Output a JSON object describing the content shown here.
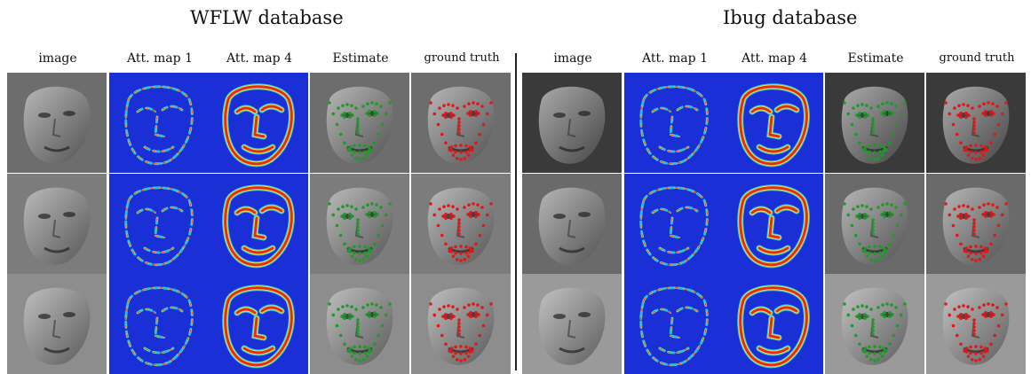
{
  "panels": [
    {
      "title": "WFLW database",
      "columns": [
        "image",
        "Att. map 1",
        "Att. map 4",
        "Estimate",
        "ground truth"
      ]
    },
    {
      "title": "Ibug database",
      "columns": [
        "image",
        "Att. map 1",
        "Att. map 4",
        "Estimate",
        "ground truth"
      ]
    }
  ],
  "colors": {
    "heatmap_bg": "#1a2fd6",
    "estimate_landmarks": "#1f9a2a",
    "ground_truth_landmarks": "#e01818",
    "divider": "#222222"
  }
}
